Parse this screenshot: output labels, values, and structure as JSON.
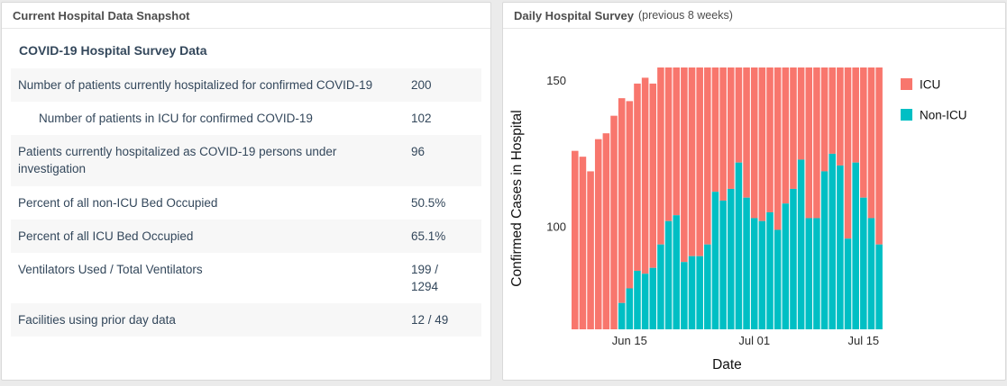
{
  "page": {
    "background": "#ebebeb"
  },
  "left_panel": {
    "header": "Current Hospital Data Snapshot",
    "section_title": "COVID-19 Hospital Survey Data",
    "rows": [
      {
        "label": "Number of patients currently hospitalized for confirmed COVID-19",
        "value": "200",
        "indent": false,
        "shaded": true
      },
      {
        "label": "Number of patients in ICU for confirmed COVID-19",
        "value": "102",
        "indent": true,
        "shaded": false
      },
      {
        "label": "Patients currently hospitalized as COVID-19 persons under investigation",
        "value": "96",
        "indent": false,
        "shaded": true
      },
      {
        "label": "Percent of all non-ICU Bed Occupied",
        "value": "50.5%",
        "indent": false,
        "shaded": false
      },
      {
        "label": "Percent of all ICU Bed Occupied",
        "value": "65.1%",
        "indent": false,
        "shaded": true
      },
      {
        "label": "Ventilators Used / Total Ventilators",
        "value": "199 / 1294",
        "indent": false,
        "shaded": false
      },
      {
        "label": "Facilities using prior day data",
        "value": "12 / 49",
        "indent": false,
        "shaded": true
      }
    ]
  },
  "right_panel": {
    "header": "Daily Hospital Survey",
    "header_note": "(previous 8 weeks)"
  },
  "chart_data": {
    "type": "bar",
    "stacked": true,
    "title": "Daily Hospital Survey (previous 8 weeks)",
    "xlabel": "Date",
    "ylabel": "Confirmed Cases in Hospital",
    "categories": [
      "Jun 08",
      "Jun 09",
      "Jun 10",
      "Jun 11",
      "Jun 12",
      "Jun 13",
      "Jun 14",
      "Jun 15",
      "Jun 16",
      "Jun 17",
      "Jun 18",
      "Jun 19",
      "Jun 20",
      "Jun 21",
      "Jun 22",
      "Jun 23",
      "Jun 24",
      "Jun 25",
      "Jun 26",
      "Jun 27",
      "Jun 28",
      "Jun 29",
      "Jun 30",
      "Jul 01",
      "Jul 02",
      "Jul 03",
      "Jul 04",
      "Jul 05",
      "Jul 06",
      "Jul 07",
      "Jul 08",
      "Jul 09",
      "Jul 10",
      "Jul 11",
      "Jul 12",
      "Jul 13",
      "Jul 14",
      "Jul 15",
      "Jul 16",
      "Jul 17"
    ],
    "series": [
      {
        "name": "ICU",
        "color": "#f8766d",
        "role": "top-of-stack"
      },
      {
        "name": "Non-ICU",
        "color": "#00bfc4",
        "role": "bottom-of-stack"
      }
    ],
    "non_icu_values": [
      0,
      0,
      0,
      0,
      0,
      0,
      74,
      79,
      85,
      84,
      86,
      94,
      102,
      104,
      88,
      90,
      90,
      94,
      112,
      109,
      113,
      122,
      110,
      103,
      102,
      105,
      99,
      108,
      113,
      123,
      103,
      103,
      119,
      125,
      121,
      96,
      122,
      110,
      103,
      94
    ],
    "stack_totals": [
      126,
      124,
      119,
      130,
      132,
      138,
      144,
      143,
      149,
      151,
      149,
      155,
      155,
      155,
      155,
      155,
      155,
      155,
      155,
      155,
      155,
      155,
      155,
      155,
      155,
      155,
      155,
      155,
      155,
      155,
      155,
      155,
      155,
      155,
      155,
      155,
      155,
      155,
      155,
      155
    ],
    "clip_note": "Bars from Jun 19 onward exceed the visible y-range and are clipped flat at the plot top (~154); first 6 bars show no Non-ICU segment.",
    "ylim": [
      65,
      154.5
    ],
    "yticks": [
      100,
      150
    ],
    "xtick_labels": [
      "Jun 15",
      "Jul 01",
      "Jul 15"
    ],
    "xtick_indices": [
      7,
      23,
      37
    ],
    "grid": false,
    "legend_position": "right"
  }
}
